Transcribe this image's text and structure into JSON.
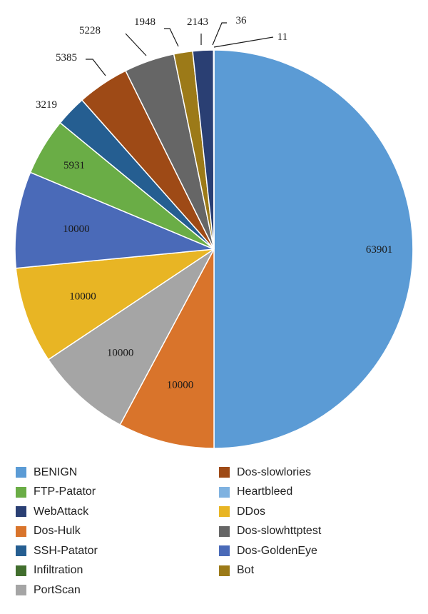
{
  "chart_data": {
    "type": "pie",
    "title": "",
    "slices": [
      {
        "label": "BENIGN",
        "value": 63901,
        "color": "#5b9bd5",
        "label_text": "63901"
      },
      {
        "label": "Dos-Hulk",
        "value": 10000,
        "color": "#d9742b",
        "label_text": "10000"
      },
      {
        "label": "PortScan",
        "value": 10000,
        "color": "#a5a5a5",
        "label_text": "10000"
      },
      {
        "label": "DDos",
        "value": 10000,
        "color": "#e8b524",
        "label_text": "10000"
      },
      {
        "label": "Dos-GoldenEye",
        "value": 10000,
        "color": "#4a6ab8",
        "label_text": "10000"
      },
      {
        "label": "FTP-Patator",
        "value": 5931,
        "color": "#6aad46",
        "label_text": "5931"
      },
      {
        "label": "SSH-Patator",
        "value": 3219,
        "color": "#255e91",
        "label_text": "3219"
      },
      {
        "label": "Dos-slowlories",
        "value": 5385,
        "color": "#9e4a16",
        "label_text": "5385"
      },
      {
        "label": "Dos-slowhttptest",
        "value": 5228,
        "color": "#666666",
        "label_text": "5228"
      },
      {
        "label": "Bot",
        "value": 1948,
        "color": "#9c7a18",
        "label_text": "1948"
      },
      {
        "label": "WebAttack",
        "value": 2143,
        "color": "#2a3f73",
        "label_text": "2143"
      },
      {
        "label": "Infiltration",
        "value": 36,
        "color": "#416e2e",
        "label_text": "36"
      },
      {
        "label": "Heartbleed",
        "value": 11,
        "color": "#7fb2e0",
        "label_text": "11"
      }
    ],
    "legend": [
      {
        "label": "BENIGN",
        "color": "#5b9bd5"
      },
      {
        "label": "FTP-Patator",
        "color": "#6aad46"
      },
      {
        "label": "WebAttack",
        "color": "#2a3f73"
      },
      {
        "label": "Dos-Hulk",
        "color": "#d9742b"
      },
      {
        "label": "SSH-Patator",
        "color": "#255e91"
      },
      {
        "label": "Infiltration",
        "color": "#416e2e"
      },
      {
        "label": "PortScan",
        "color": "#a5a5a5"
      },
      {
        "label": "Dos-slowlories",
        "color": "#9e4a16"
      },
      {
        "label": "Heartbleed",
        "color": "#7fb2e0"
      },
      {
        "label": "DDos",
        "color": "#e8b524"
      },
      {
        "label": "Dos-slowhttptest",
        "color": "#666666"
      },
      {
        "label": "Dos-GoldenEye",
        "color": "#4a6ab8"
      },
      {
        "label": "Bot",
        "color": "#9c7a18"
      }
    ],
    "legend_placement": "bottom"
  }
}
